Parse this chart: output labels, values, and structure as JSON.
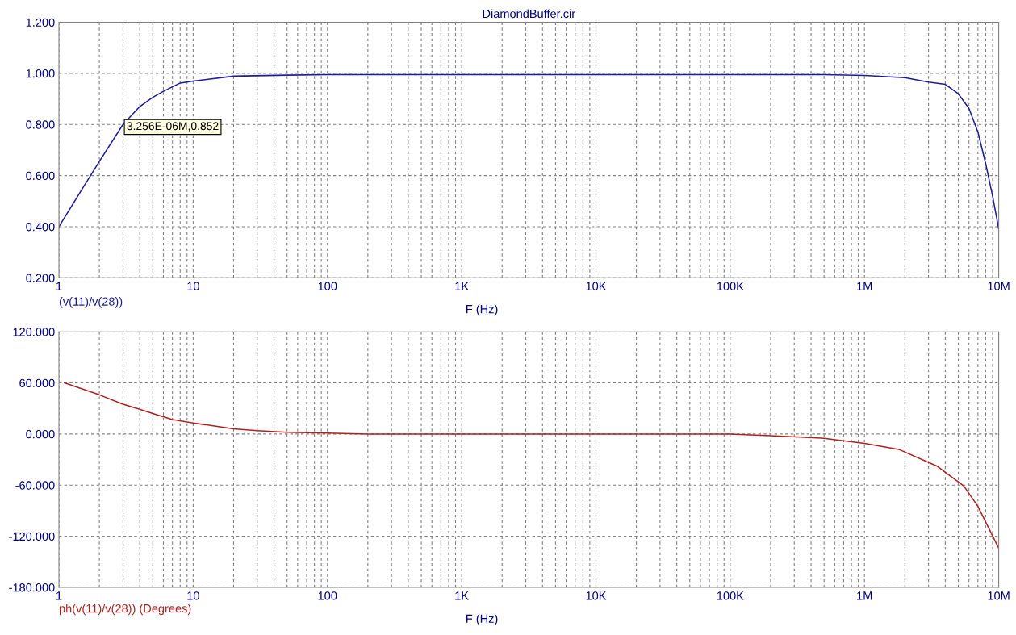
{
  "chart_data": [
    {
      "type": "line",
      "title": "DiamondBuffer.cir",
      "xlabel": "F (Hz)",
      "log": "x",
      "grid": true,
      "xlim": [
        1,
        10000000
      ],
      "xticks": [
        1,
        10,
        100,
        {
          "value": 1000,
          "label": "1K"
        },
        {
          "value": 10000,
          "label": "10K"
        },
        {
          "value": 100000,
          "label": "100K"
        },
        {
          "value": 1000000,
          "label": "1M"
        },
        {
          "value": 10000000,
          "label": "10M"
        }
      ],
      "ylim": [
        0.2,
        1.2
      ],
      "yticks": [
        {
          "value": 0.2,
          "label": "0.200"
        },
        {
          "value": 0.4,
          "label": "0.400"
        },
        {
          "value": 0.6,
          "label": "0.600"
        },
        {
          "value": 0.8,
          "label": "0.800"
        },
        {
          "value": 1.0,
          "label": "1.000"
        },
        {
          "value": 1.2,
          "label": "1.200"
        }
      ],
      "annotations": [
        "3.256E-06M,0.852"
      ],
      "series": [
        {
          "name": "(v(11)/v(28))",
          "color": "#1c1c9c",
          "x": [
            1,
            1.5,
            2,
            3,
            4,
            5,
            6,
            8,
            10,
            20,
            50,
            100,
            1000,
            10000,
            100000,
            500000,
            1000000,
            2000000,
            3000000,
            4000000,
            5000000,
            6000000,
            7000000,
            8000000,
            9000000,
            10000000
          ],
          "values": [
            0.4,
            0.55,
            0.655,
            0.8,
            0.87,
            0.906,
            0.93,
            0.962,
            0.97,
            0.989,
            0.993,
            0.995,
            0.995,
            0.995,
            0.995,
            0.995,
            0.992,
            0.983,
            0.966,
            0.957,
            0.92,
            0.863,
            0.77,
            0.646,
            0.52,
            0.391
          ]
        }
      ]
    },
    {
      "type": "line",
      "xlabel": "F (Hz)",
      "log": "x",
      "grid": true,
      "xlim": [
        1,
        10000000
      ],
      "xticks": [
        1,
        10,
        100,
        {
          "value": 1000,
          "label": "1K"
        },
        {
          "value": 10000,
          "label": "10K"
        },
        {
          "value": 100000,
          "label": "100K"
        },
        {
          "value": 1000000,
          "label": "1M"
        },
        {
          "value": 10000000,
          "label": "10M"
        }
      ],
      "ylim": [
        -180,
        120
      ],
      "yticks": [
        {
          "value": -180,
          "label": "-180.000"
        },
        {
          "value": -120,
          "label": "-120.000"
        },
        {
          "value": -60,
          "label": "-60.000"
        },
        {
          "value": 0,
          "label": "0.000"
        },
        {
          "value": 60,
          "label": "60.000"
        },
        {
          "value": 120,
          "label": "120.000"
        }
      ],
      "series": [
        {
          "name": "ph(v(11)/v(28)) (Degrees)",
          "color": "#b02020",
          "x": [
            1.1,
            2,
            3,
            4,
            5,
            7,
            10,
            20,
            30,
            50,
            100,
            200,
            1000,
            10000,
            100000,
            200000,
            500000,
            1000000,
            1800000,
            3500000,
            5500000,
            7000000,
            10000000
          ],
          "values": [
            60,
            46,
            35,
            29,
            24,
            17,
            13,
            6,
            4,
            2,
            1,
            0,
            0,
            0,
            0,
            -2,
            -5,
            -11,
            -18,
            -38,
            -61,
            -85,
            -134
          ]
        }
      ]
    }
  ]
}
